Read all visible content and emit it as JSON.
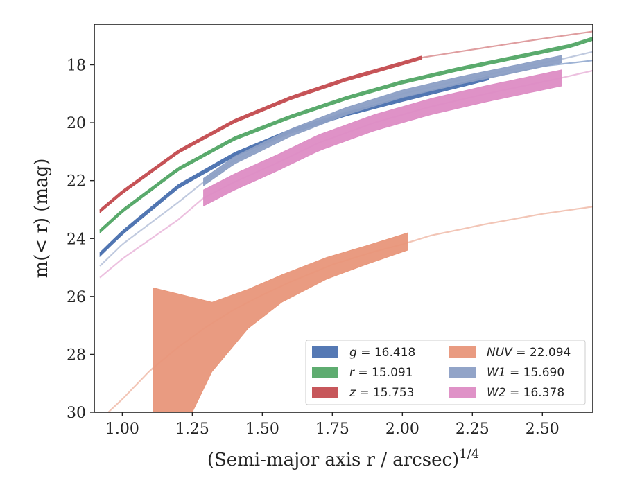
{
  "chart_data": {
    "type": "line",
    "xlabel_main": "(Semi-major axis r / arcsec)",
    "xlabel_sup": "1/4",
    "ylabel": "m(< r) (mag)",
    "xlim": [
      0.9,
      2.68
    ],
    "ylim": [
      30,
      16.6
    ],
    "y_inverted": true,
    "x_ticks": [
      "1.00",
      "1.25",
      "1.50",
      "1.75",
      "2.00",
      "2.25",
      "2.50"
    ],
    "x_tick_values": [
      1.0,
      1.25,
      1.5,
      1.75,
      2.0,
      2.25,
      2.5
    ],
    "y_ticks": [
      "18",
      "20",
      "22",
      "24",
      "26",
      "28",
      "30"
    ],
    "y_tick_values": [
      18,
      20,
      22,
      24,
      26,
      28,
      30
    ],
    "grid": false,
    "legend_placement": "lower-right",
    "series": [
      {
        "name": "g = 16.418",
        "color": "#4c72b0",
        "data_x_range": [
          0.92,
          2.31
        ],
        "model_x": [
          0.92,
          1.0,
          1.2,
          1.4,
          1.6,
          1.8,
          2.0,
          2.2,
          2.31,
          2.5,
          2.68
        ],
        "model_y": [
          24.55,
          23.8,
          22.2,
          21.1,
          20.3,
          19.7,
          19.2,
          18.72,
          18.45,
          18.05,
          17.85
        ],
        "band_half_width": 0.07
      },
      {
        "name": "r = 15.091",
        "color": "#55a868",
        "data_x_range": [
          0.92,
          2.68
        ],
        "model_x": [
          0.92,
          1.0,
          1.2,
          1.4,
          1.6,
          1.8,
          2.0,
          2.2,
          2.4,
          2.6,
          2.68
        ],
        "model_y": [
          23.75,
          23.05,
          21.6,
          20.55,
          19.8,
          19.15,
          18.6,
          18.15,
          17.75,
          17.35,
          17.1
        ],
        "band_half_width": 0.06
      },
      {
        "name": "z = 15.753",
        "color": "#c44e52",
        "data_x_range": [
          0.92,
          2.07
        ],
        "model_x": [
          0.92,
          1.0,
          1.2,
          1.4,
          1.6,
          1.8,
          2.0,
          2.07,
          2.3,
          2.5,
          2.68
        ],
        "model_y": [
          23.05,
          22.4,
          21.0,
          19.95,
          19.15,
          18.5,
          17.95,
          17.75,
          17.4,
          17.1,
          16.85
        ],
        "band_half_width": 0.06
      },
      {
        "name": "NUV = 22.094",
        "color": "#e8967a",
        "data_x_range": [
          1.11,
          2.02
        ],
        "model_x": [
          0.95,
          1.0,
          1.1,
          1.2,
          1.3,
          1.4,
          1.5,
          1.6,
          1.75,
          1.9,
          2.0,
          2.1,
          2.3,
          2.5,
          2.68
        ],
        "model_y": [
          30.0,
          29.55,
          28.55,
          27.75,
          27.05,
          26.45,
          25.95,
          25.5,
          24.9,
          24.45,
          24.2,
          23.9,
          23.5,
          23.15,
          22.9
        ],
        "band_upper_x": [
          1.11,
          1.32,
          1.45,
          1.57,
          1.73,
          1.87,
          2.02
        ],
        "band_upper_y": [
          25.7,
          26.2,
          25.75,
          25.25,
          24.65,
          24.25,
          23.8
        ],
        "band_lower_x": [
          1.11,
          1.25,
          1.32,
          1.45,
          1.57,
          1.73,
          1.87,
          2.02
        ],
        "band_lower_y": [
          30.0,
          30.0,
          28.6,
          27.1,
          26.2,
          25.4,
          24.9,
          24.4
        ]
      },
      {
        "name": "W1 = 15.690",
        "color": "#8c9fc5",
        "data_x_range": [
          1.29,
          2.57
        ],
        "model_x": [
          0.92,
          1.0,
          1.2,
          1.29,
          1.4,
          1.6,
          1.8,
          2.0,
          2.2,
          2.4,
          2.57,
          2.68
        ],
        "model_y": [
          24.95,
          24.2,
          22.75,
          22.05,
          21.3,
          20.35,
          19.6,
          19.0,
          18.55,
          18.15,
          17.8,
          17.55
        ],
        "band_half_width": 0.13
      },
      {
        "name": "W2 = 16.378",
        "color": "#dd8cc4",
        "data_x_range": [
          1.29,
          2.57
        ],
        "model_x": [
          0.92,
          1.0,
          1.2,
          1.29,
          1.4,
          1.55,
          1.7,
          1.9,
          2.1,
          2.3,
          2.57,
          2.68
        ],
        "model_y": [
          25.35,
          24.7,
          23.35,
          22.6,
          22.05,
          21.4,
          20.7,
          20.0,
          19.45,
          19.0,
          18.45,
          18.2
        ],
        "band_half_width": 0.28
      }
    ],
    "legend": [
      {
        "label": "g = 16.418",
        "color": "#4c72b0",
        "var": "g",
        "value": "16.418"
      },
      {
        "label": "r = 15.091",
        "color": "#55a868",
        "var": "r",
        "value": "15.091"
      },
      {
        "label": "z = 15.753",
        "color": "#c44e52",
        "var": "z",
        "value": "15.753"
      },
      {
        "label": "NUV = 22.094",
        "color": "#e8967a",
        "var": "NUV",
        "value": "22.094"
      },
      {
        "label": "W1 = 15.690",
        "color": "#8c9fc5",
        "var": "W1",
        "value": "15.690"
      },
      {
        "label": "W2 = 16.378",
        "color": "#dd8cc4",
        "var": "W2",
        "value": "16.378"
      }
    ]
  }
}
